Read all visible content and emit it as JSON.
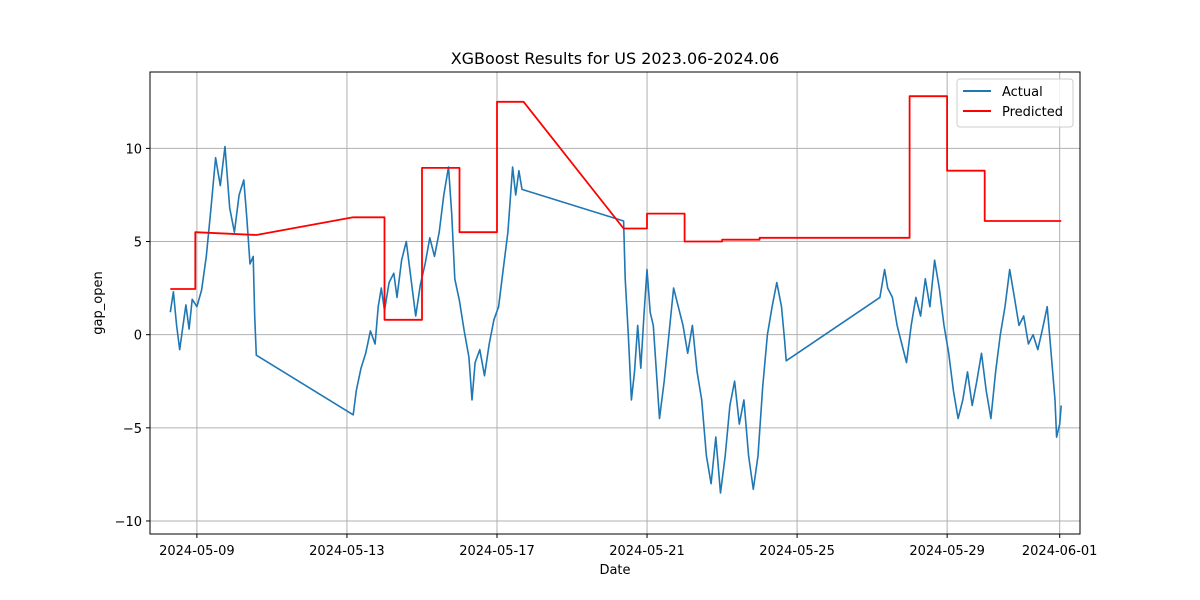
{
  "chart_data": {
    "type": "line",
    "title": "XGBoost Results for US 2023.06-2024.06",
    "xlabel": "Date",
    "ylabel": "gap_open",
    "xlim": [
      "2024-05-07T18:00",
      "2024-06-01T13:00"
    ],
    "ylim": [
      -10.7,
      14.1
    ],
    "x_ticks": [
      "2024-05-09",
      "2024-05-13",
      "2024-05-17",
      "2024-05-21",
      "2024-05-25",
      "2024-05-29",
      "2024-06-01"
    ],
    "y_ticks": [
      -10,
      -5,
      0,
      5,
      10
    ],
    "y_tick_labels": [
      "−10",
      "−5",
      "0",
      "5",
      "10"
    ],
    "grid": true,
    "legend_position": "top-right",
    "series": [
      {
        "name": "Actual",
        "color": "#1f77b4",
        "points": [
          [
            "2024-05-08T07:00",
            1.2
          ],
          [
            "2024-05-08T09:00",
            2.3
          ],
          [
            "2024-05-08T11:00",
            0.5
          ],
          [
            "2024-05-08T13:00",
            -0.8
          ],
          [
            "2024-05-08T15:00",
            0.4
          ],
          [
            "2024-05-08T17:00",
            1.6
          ],
          [
            "2024-05-08T19:00",
            0.3
          ],
          [
            "2024-05-08T21:00",
            1.9
          ],
          [
            "2024-05-09T00:00",
            1.5
          ],
          [
            "2024-05-09T03:00",
            2.4
          ],
          [
            "2024-05-09T06:00",
            4.2
          ],
          [
            "2024-05-09T09:00",
            6.8
          ],
          [
            "2024-05-09T12:00",
            9.5
          ],
          [
            "2024-05-09T15:00",
            8.0
          ],
          [
            "2024-05-09T18:00",
            10.1
          ],
          [
            "2024-05-09T21:00",
            6.8
          ],
          [
            "2024-05-10T00:00",
            5.5
          ],
          [
            "2024-05-10T03:00",
            7.5
          ],
          [
            "2024-05-10T06:00",
            8.3
          ],
          [
            "2024-05-10T08:00",
            6.2
          ],
          [
            "2024-05-10T10:00",
            3.8
          ],
          [
            "2024-05-10T12:00",
            4.2
          ],
          [
            "2024-05-10T13:00",
            1.0
          ],
          [
            "2024-05-10T14:00",
            -1.1
          ],
          [
            "2024-05-13T04:00",
            -4.3
          ],
          [
            "2024-05-13T06:00",
            -3.0
          ],
          [
            "2024-05-13T09:00",
            -1.8
          ],
          [
            "2024-05-13T12:00",
            -1.0
          ],
          [
            "2024-05-13T15:00",
            0.2
          ],
          [
            "2024-05-13T18:00",
            -0.5
          ],
          [
            "2024-05-13T20:00",
            1.5
          ],
          [
            "2024-05-13T22:00",
            2.5
          ],
          [
            "2024-05-14T00:00",
            1.3
          ],
          [
            "2024-05-14T03:00",
            2.8
          ],
          [
            "2024-05-14T06:00",
            3.3
          ],
          [
            "2024-05-14T08:00",
            2.0
          ],
          [
            "2024-05-14T11:00",
            4.0
          ],
          [
            "2024-05-14T14:00",
            5.0
          ],
          [
            "2024-05-14T17:00",
            3.0
          ],
          [
            "2024-05-14T20:00",
            1.0
          ],
          [
            "2024-05-14T23:00",
            2.7
          ],
          [
            "2024-05-15T02:00",
            3.8
          ],
          [
            "2024-05-15T05:00",
            5.2
          ],
          [
            "2024-05-15T08:00",
            4.2
          ],
          [
            "2024-05-15T11:00",
            5.5
          ],
          [
            "2024-05-15T14:00",
            7.5
          ],
          [
            "2024-05-15T17:00",
            9.0
          ],
          [
            "2024-05-15T19:00",
            6.5
          ],
          [
            "2024-05-15T21:00",
            3.0
          ],
          [
            "2024-05-16T00:00",
            1.8
          ],
          [
            "2024-05-16T03:00",
            0.2
          ],
          [
            "2024-05-16T06:00",
            -1.2
          ],
          [
            "2024-05-16T08:00",
            -3.5
          ],
          [
            "2024-05-16T10:00",
            -1.5
          ],
          [
            "2024-05-16T13:00",
            -0.8
          ],
          [
            "2024-05-16T16:00",
            -2.2
          ],
          [
            "2024-05-16T19:00",
            -0.5
          ],
          [
            "2024-05-16T22:00",
            0.8
          ],
          [
            "2024-05-17T01:00",
            1.5
          ],
          [
            "2024-05-17T04:00",
            3.5
          ],
          [
            "2024-05-17T07:00",
            5.5
          ],
          [
            "2024-05-17T10:00",
            9.0
          ],
          [
            "2024-05-17T12:00",
            7.5
          ],
          [
            "2024-05-17T14:00",
            8.8
          ],
          [
            "2024-05-17T16:00",
            7.8
          ],
          [
            "2024-05-20T09:00",
            6.1
          ],
          [
            "2024-05-20T10:00",
            3.0
          ],
          [
            "2024-05-20T12:00",
            0.0
          ],
          [
            "2024-05-20T14:00",
            -3.5
          ],
          [
            "2024-05-20T16:00",
            -2.0
          ],
          [
            "2024-05-20T18:00",
            0.5
          ],
          [
            "2024-05-20T20:00",
            -1.8
          ],
          [
            "2024-05-20T22:00",
            1.0
          ],
          [
            "2024-05-21T00:00",
            3.5
          ],
          [
            "2024-05-21T02:00",
            1.2
          ],
          [
            "2024-05-21T04:00",
            0.5
          ],
          [
            "2024-05-21T06:00",
            -2.0
          ],
          [
            "2024-05-21T08:00",
            -4.5
          ],
          [
            "2024-05-21T11:00",
            -2.5
          ],
          [
            "2024-05-21T14:00",
            0.0
          ],
          [
            "2024-05-21T17:00",
            2.5
          ],
          [
            "2024-05-21T20:00",
            1.5
          ],
          [
            "2024-05-21T23:00",
            0.5
          ],
          [
            "2024-05-22T02:00",
            -1.0
          ],
          [
            "2024-05-22T05:00",
            0.5
          ],
          [
            "2024-05-22T08:00",
            -2.0
          ],
          [
            "2024-05-22T11:00",
            -3.5
          ],
          [
            "2024-05-22T14:00",
            -6.5
          ],
          [
            "2024-05-22T17:00",
            -8.0
          ],
          [
            "2024-05-22T20:00",
            -5.5
          ],
          [
            "2024-05-22T23:00",
            -8.5
          ],
          [
            "2024-05-23T02:00",
            -6.5
          ],
          [
            "2024-05-23T05:00",
            -3.8
          ],
          [
            "2024-05-23T08:00",
            -2.5
          ],
          [
            "2024-05-23T11:00",
            -4.8
          ],
          [
            "2024-05-23T14:00",
            -3.5
          ],
          [
            "2024-05-23T17:00",
            -6.5
          ],
          [
            "2024-05-23T20:00",
            -8.3
          ],
          [
            "2024-05-23T23:00",
            -6.5
          ],
          [
            "2024-05-24T02:00",
            -2.8
          ],
          [
            "2024-05-24T05:00",
            0.0
          ],
          [
            "2024-05-24T08:00",
            1.5
          ],
          [
            "2024-05-24T11:00",
            2.8
          ],
          [
            "2024-05-24T14:00",
            1.5
          ],
          [
            "2024-05-24T16:00",
            -0.3
          ],
          [
            "2024-05-24T17:00",
            -1.4
          ],
          [
            "2024-05-27T05:00",
            2.0
          ],
          [
            "2024-05-27T08:00",
            3.5
          ],
          [
            "2024-05-27T10:00",
            2.5
          ],
          [
            "2024-05-27T13:00",
            2.0
          ],
          [
            "2024-05-27T16:00",
            0.5
          ],
          [
            "2024-05-27T19:00",
            -0.5
          ],
          [
            "2024-05-27T22:00",
            -1.5
          ],
          [
            "2024-05-28T01:00",
            0.5
          ],
          [
            "2024-05-28T04:00",
            2.0
          ],
          [
            "2024-05-28T07:00",
            1.0
          ],
          [
            "2024-05-28T10:00",
            3.0
          ],
          [
            "2024-05-28T13:00",
            1.5
          ],
          [
            "2024-05-28T16:00",
            4.0
          ],
          [
            "2024-05-28T19:00",
            2.5
          ],
          [
            "2024-05-28T22:00",
            0.5
          ],
          [
            "2024-05-29T01:00",
            -1.0
          ],
          [
            "2024-05-29T04:00",
            -3.0
          ],
          [
            "2024-05-29T07:00",
            -4.5
          ],
          [
            "2024-05-29T10:00",
            -3.5
          ],
          [
            "2024-05-29T13:00",
            -2.0
          ],
          [
            "2024-05-29T16:00",
            -3.8
          ],
          [
            "2024-05-29T19:00",
            -2.5
          ],
          [
            "2024-05-29T22:00",
            -1.0
          ],
          [
            "2024-05-30T01:00",
            -3.0
          ],
          [
            "2024-05-30T04:00",
            -4.5
          ],
          [
            "2024-05-30T07:00",
            -2.0
          ],
          [
            "2024-05-30T10:00",
            0.0
          ],
          [
            "2024-05-30T13:00",
            1.5
          ],
          [
            "2024-05-30T16:00",
            3.5
          ],
          [
            "2024-05-30T19:00",
            2.0
          ],
          [
            "2024-05-30T22:00",
            0.5
          ],
          [
            "2024-05-31T01:00",
            1.0
          ],
          [
            "2024-05-31T04:00",
            -0.5
          ],
          [
            "2024-05-31T07:00",
            0.0
          ],
          [
            "2024-05-31T10:00",
            -0.8
          ],
          [
            "2024-05-31T13:00",
            0.3
          ],
          [
            "2024-05-31T16:00",
            1.5
          ],
          [
            "2024-05-31T19:00",
            -1.5
          ],
          [
            "2024-05-31T21:00",
            -3.5
          ],
          [
            "2024-05-31T22:00",
            -5.5
          ],
          [
            "2024-06-01T00:00",
            -4.8
          ],
          [
            "2024-06-01T01:00",
            -3.8
          ]
        ]
      },
      {
        "name": "Predicted",
        "color": "#ff0000",
        "points": [
          [
            "2024-05-08T07:00",
            2.45
          ],
          [
            "2024-05-08T23:00",
            2.45
          ],
          [
            "2024-05-08T23:00",
            5.5
          ],
          [
            "2024-05-10T14:00",
            5.35
          ],
          [
            "2024-05-13T04:00",
            6.3
          ],
          [
            "2024-05-14T00:00",
            6.3
          ],
          [
            "2024-05-14T00:00",
            0.8
          ],
          [
            "2024-05-15T00:00",
            0.8
          ],
          [
            "2024-05-15T00:00",
            8.95
          ],
          [
            "2024-05-16T00:00",
            8.95
          ],
          [
            "2024-05-16T00:00",
            5.5
          ],
          [
            "2024-05-17T00:00",
            5.5
          ],
          [
            "2024-05-17T00:00",
            12.5
          ],
          [
            "2024-05-17T17:00",
            12.5
          ],
          [
            "2024-05-20T09:00",
            5.7
          ],
          [
            "2024-05-21T00:00",
            5.7
          ],
          [
            "2024-05-21T00:00",
            6.5
          ],
          [
            "2024-05-22T00:00",
            6.5
          ],
          [
            "2024-05-22T00:00",
            5.0
          ],
          [
            "2024-05-23T00:00",
            5.0
          ],
          [
            "2024-05-23T00:00",
            5.1
          ],
          [
            "2024-05-24T00:00",
            5.1
          ],
          [
            "2024-05-24T00:00",
            5.2
          ],
          [
            "2024-05-28T00:00",
            5.2
          ],
          [
            "2024-05-28T00:00",
            12.8
          ],
          [
            "2024-05-29T00:00",
            12.8
          ],
          [
            "2024-05-29T00:00",
            8.8
          ],
          [
            "2024-05-30T00:00",
            8.8
          ],
          [
            "2024-05-30T00:00",
            6.1
          ],
          [
            "2024-06-01T01:00",
            6.1
          ]
        ]
      }
    ]
  }
}
